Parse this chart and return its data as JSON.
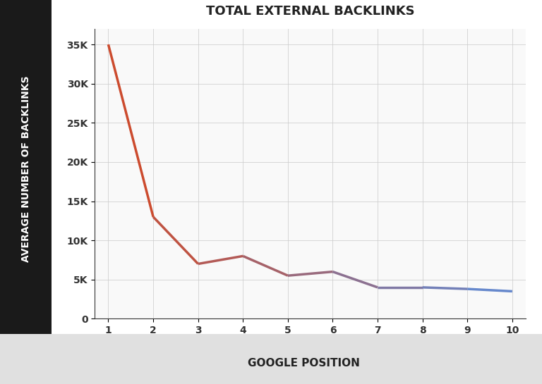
{
  "title": "TOTAL EXTERNAL BACKLINKS",
  "xlabel": "GOOGLE POSITION",
  "ylabel": "AVERAGE NUMBER OF BACKLINKS",
  "x": [
    1,
    2,
    3,
    4,
    5,
    6,
    7,
    8,
    9,
    10
  ],
  "y": [
    35000,
    13000,
    7000,
    8000,
    5500,
    6000,
    4000,
    4000,
    3800,
    3500
  ],
  "yticks": [
    0,
    5000,
    10000,
    15000,
    20000,
    25000,
    30000,
    35000
  ],
  "ytick_labels": [
    "0",
    "5K",
    "10K",
    "15K",
    "20K",
    "25K",
    "30K",
    "35K"
  ],
  "xticks": [
    1,
    2,
    3,
    4,
    5,
    6,
    7,
    8,
    9,
    10
  ],
  "color_start": "#cc4b2e",
  "color_end": "#6688cc",
  "background_chart": "#f9f9f9",
  "background_left": "#1a1a1a",
  "background_bottom": "#e0e0e0",
  "background_fig": "#ffffff",
  "title_fontsize": 13,
  "axis_label_fontsize": 10,
  "tick_fontsize": 10,
  "line_width": 2.5,
  "ylim": [
    0,
    37000
  ],
  "xlim": [
    0.7,
    10.3
  ]
}
